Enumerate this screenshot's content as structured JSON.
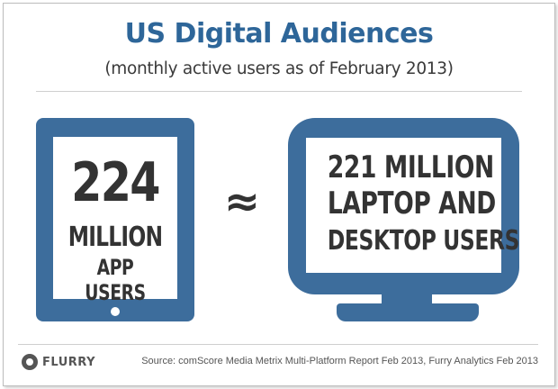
{
  "header": {
    "title": "US Digital Audiences",
    "subtitle": "(monthly active users as of February 2013)"
  },
  "tablet": {
    "number": "224",
    "line2": "MILLION",
    "line3": "APP USERS"
  },
  "comparison_symbol": "≈",
  "monitor": {
    "line1": "221 MILLION",
    "line2": "LAPTOP AND",
    "line3": "DESKTOP USERS"
  },
  "footer": {
    "logo_text": "FLURRY",
    "source": "Source: comScore Media Metrix Multi-Platform Report Feb 2013, Furry Analytics Feb 2013"
  },
  "colors": {
    "accent_blue": "#3d6d9c",
    "title_blue": "#2e6699",
    "text_dark": "#333333"
  }
}
